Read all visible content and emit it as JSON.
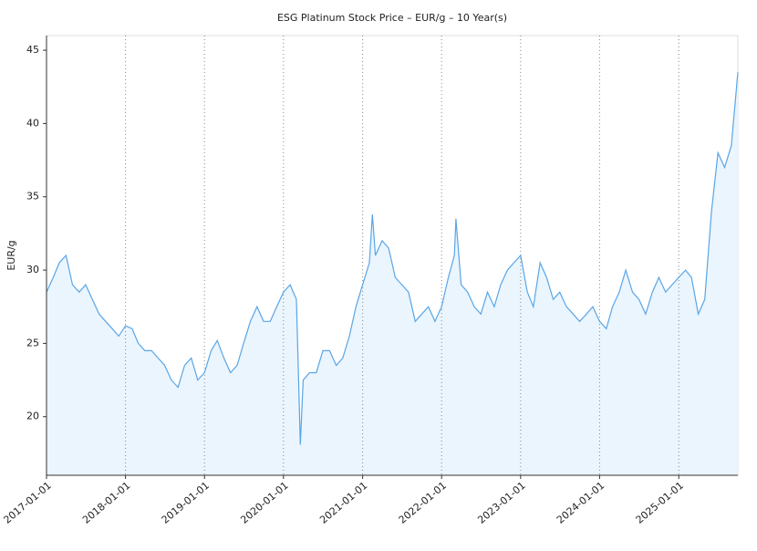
{
  "chart_data": {
    "type": "area",
    "title": "ESG Platinum Stock Price – EUR/g – 10 Year(s)",
    "y_label": "EUR/g",
    "x": [
      "2017-01-01",
      "2017-02-01",
      "2017-03-01",
      "2017-04-01",
      "2017-05-01",
      "2017-06-01",
      "2017-07-01",
      "2017-08-01",
      "2017-09-01",
      "2017-10-01",
      "2017-11-01",
      "2017-12-01",
      "2018-01-01",
      "2018-02-01",
      "2018-03-01",
      "2018-04-01",
      "2018-05-01",
      "2018-06-01",
      "2018-07-01",
      "2018-08-01",
      "2018-09-01",
      "2018-10-01",
      "2018-11-01",
      "2018-12-01",
      "2019-01-01",
      "2019-02-01",
      "2019-03-01",
      "2019-04-01",
      "2019-05-01",
      "2019-06-01",
      "2019-07-01",
      "2019-08-01",
      "2019-09-01",
      "2019-10-01",
      "2019-11-01",
      "2019-12-01",
      "2020-01-01",
      "2020-02-01",
      "2020-03-01",
      "2020-03-19",
      "2020-04-01",
      "2020-05-01",
      "2020-06-01",
      "2020-07-01",
      "2020-08-01",
      "2020-09-01",
      "2020-10-01",
      "2020-11-01",
      "2020-12-01",
      "2021-01-01",
      "2021-02-01",
      "2021-02-15",
      "2021-03-01",
      "2021-04-01",
      "2021-05-01",
      "2021-06-01",
      "2021-07-01",
      "2021-08-01",
      "2021-09-01",
      "2021-10-01",
      "2021-11-01",
      "2021-12-01",
      "2022-01-01",
      "2022-02-01",
      "2022-03-01",
      "2022-03-08",
      "2022-04-01",
      "2022-05-01",
      "2022-06-01",
      "2022-07-01",
      "2022-08-01",
      "2022-09-01",
      "2022-10-01",
      "2022-11-01",
      "2022-12-01",
      "2023-01-01",
      "2023-02-01",
      "2023-03-01",
      "2023-04-01",
      "2023-05-01",
      "2023-06-01",
      "2023-07-01",
      "2023-08-01",
      "2023-09-01",
      "2023-10-01",
      "2023-11-01",
      "2023-12-01",
      "2024-01-01",
      "2024-02-01",
      "2024-03-01",
      "2024-04-01",
      "2024-05-01",
      "2024-06-01",
      "2024-07-01",
      "2024-08-01",
      "2024-09-01",
      "2024-10-01",
      "2024-11-01",
      "2024-12-01",
      "2025-01-01",
      "2025-02-01",
      "2025-03-01",
      "2025-04-01",
      "2025-05-01",
      "2025-06-01",
      "2025-07-01",
      "2025-08-01",
      "2025-09-01",
      "2025-10-01"
    ],
    "values": [
      28.5,
      29.5,
      30.5,
      31,
      29,
      28.5,
      29,
      28,
      27,
      26.5,
      26,
      25.5,
      26.2,
      26,
      25,
      24.5,
      24.5,
      24,
      23.5,
      22.5,
      22,
      23.5,
      24,
      22.5,
      23,
      24.5,
      25.2,
      24,
      23,
      23.5,
      25,
      26.5,
      27.5,
      26.5,
      26.5,
      27.5,
      28.5,
      29,
      28,
      18.1,
      22.5,
      23,
      23,
      24.5,
      24.5,
      23.5,
      24,
      25.5,
      27.5,
      29,
      30.5,
      33.8,
      31,
      32,
      31.5,
      29.5,
      29,
      28.5,
      26.5,
      27,
      27.5,
      26.5,
      27.5,
      29.5,
      31,
      33.5,
      29,
      28.5,
      27.5,
      27,
      28.5,
      27.5,
      29,
      30,
      30.5,
      31,
      28.5,
      27.5,
      30.5,
      29.5,
      28,
      28.5,
      27.5,
      27,
      26.5,
      27,
      27.5,
      26.5,
      26,
      27.5,
      28.5,
      30,
      28.5,
      28,
      27,
      28.5,
      29.5,
      28.5,
      29,
      29.5,
      30,
      29.5,
      27,
      28,
      34,
      38,
      37,
      38.5,
      43.5
    ],
    "color": "#5aa5e6",
    "fill": "#eaf5fd",
    "xlim": [
      "2017-01-01",
      "2025-10-01"
    ],
    "xticks": [
      "2017-01-01",
      "2018-01-01",
      "2019-01-01",
      "2020-01-01",
      "2021-01-01",
      "2022-01-01",
      "2023-01-01",
      "2024-01-01",
      "2025-01-01"
    ],
    "ylim": [
      16,
      46
    ],
    "yticks": [
      20,
      25,
      30,
      35,
      40,
      45
    ],
    "grid": "x"
  }
}
